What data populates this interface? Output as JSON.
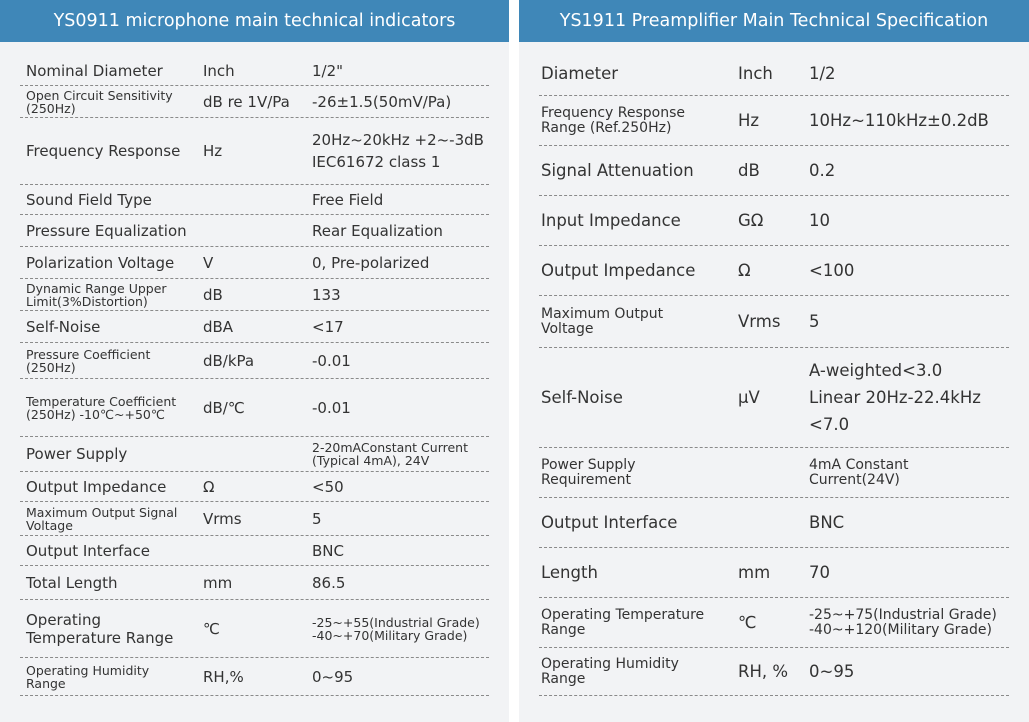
{
  "left": {
    "title": "YS0911 microphone main technical indicators",
    "rows": [
      {
        "name": "Nominal Diameter",
        "unit": "Inch",
        "value": "1/2\""
      },
      {
        "name": "Open Circuit Sensitivity (250Hz)",
        "unit": "dB re 1V/Pa",
        "value": "-26±1.5(50mV/Pa)"
      },
      {
        "name": "Frequency Response",
        "unit": "Hz",
        "value_lines": [
          "20Hz~20kHz +2~-3dB",
          "IEC61672 class 1"
        ]
      },
      {
        "name": "Sound Field Type",
        "unit": "",
        "value": "Free Field"
      },
      {
        "name": "Pressure Equalization",
        "unit": "",
        "value": "Rear Equalization"
      },
      {
        "name": "Polarization Voltage",
        "unit": "V",
        "value": "0, Pre-polarized"
      },
      {
        "name": "Dynamic Range Upper Limit(3%Distortion)",
        "unit": "dB",
        "value": "133"
      },
      {
        "name": "Self-Noise",
        "unit": "dBA",
        "value": "<17"
      },
      {
        "name": "Pressure Coefficient (250Hz)",
        "unit": "dB/kPa",
        "value": "-0.01"
      },
      {
        "name": "Temperature Coefficient (250Hz) -10℃~+50℃",
        "unit": "dB/℃",
        "value": "-0.01"
      },
      {
        "name": "Power Supply",
        "unit": "",
        "value": "2-20mAConstant Current (Typical 4mA), 24V"
      },
      {
        "name": "Output Impedance",
        "unit": "Ω",
        "value": "<50"
      },
      {
        "name": "Maximum Output Signal Voltage",
        "unit": "Vrms",
        "value": "5"
      },
      {
        "name": "Output Interface",
        "unit": "",
        "value": "BNC"
      },
      {
        "name": "Total Length",
        "unit": "mm",
        "value": "86.5"
      },
      {
        "name": "Operating Temperature Range",
        "unit": "℃",
        "value": "-25~+55(Industrial Grade) -40~+70(Military Grade)"
      },
      {
        "name": "Operating Humidity Range",
        "unit": "RH,%",
        "value": "0~95"
      }
    ]
  },
  "right": {
    "title": "YS1911 Preamplifier Main Technical Specification",
    "rows": [
      {
        "name": "Diameter",
        "unit": "Inch",
        "value": "1/2"
      },
      {
        "name": "Frequency Response Range (Ref.250Hz)",
        "unit": "Hz",
        "value": "10Hz~110kHz±0.2dB"
      },
      {
        "name": "Signal Attenuation",
        "unit": "dB",
        "value": "0.2"
      },
      {
        "name": "Input Impedance",
        "unit": "GΩ",
        "value": "10"
      },
      {
        "name": "Output Impedance",
        "unit": "Ω",
        "value": "<100"
      },
      {
        "name": "Maximum Output Voltage",
        "unit": "Vrms",
        "value": "5"
      },
      {
        "name": "Self-Noise",
        "unit": "μV",
        "value_lines": [
          "A-weighted<3.0",
          "Linear 20Hz-22.4kHz",
          "<7.0"
        ]
      },
      {
        "name": "Power Supply Requirement",
        "unit": "",
        "value": "4mA Constant Current(24V)"
      },
      {
        "name": "Output Interface",
        "unit": "",
        "value": "BNC"
      },
      {
        "name": "Length",
        "unit": "mm",
        "value": "70"
      },
      {
        "name": "Operating Temperature Range",
        "unit": "℃",
        "value": "-25~+75(Industrial Grade) -40~+120(Military Grade)"
      },
      {
        "name": "Operating Humidity Range",
        "unit": "RH, %",
        "value": "0~95"
      }
    ]
  }
}
